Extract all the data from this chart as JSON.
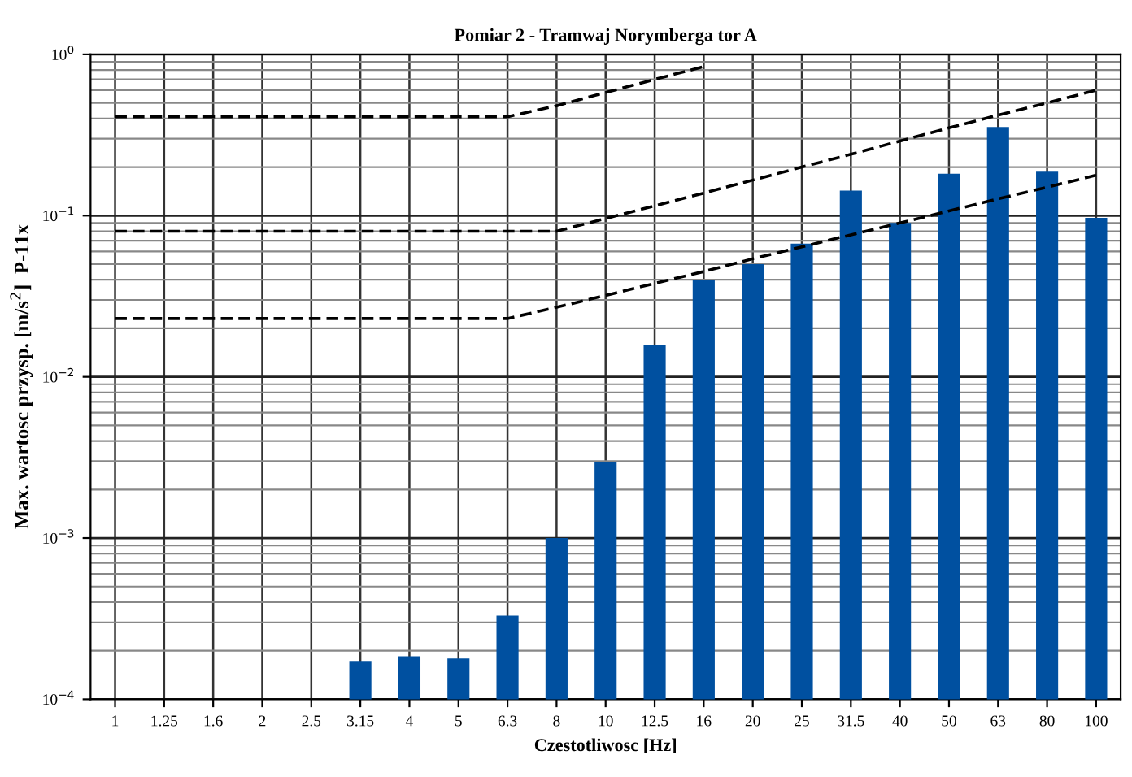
{
  "chart_data": {
    "type": "bar",
    "title": "Pomiar 2 - Tramwaj Norymberga tor A",
    "xlabel": "Czestotliwosc [Hz]",
    "ylabel": "Max. wartosc przysp. [m/s$^{2}$]  P-11x",
    "categories": [
      "1",
      "1.25",
      "1.6",
      "2",
      "2.5",
      "3.15",
      "4",
      "5",
      "6.3",
      "8",
      "10",
      "12.5",
      "16",
      "20",
      "25",
      "31.5",
      "40",
      "50",
      "63",
      "80",
      "100"
    ],
    "log": true,
    "ylim": [
      0.0001,
      1
    ],
    "yticks": [
      {
        "value": 0.0001,
        "label": "10$^{−4}$"
      },
      {
        "value": 0.001,
        "label": "10$^{−3}$"
      },
      {
        "value": 0.01,
        "label": "10$^{−2}$"
      },
      {
        "value": 0.1,
        "label": "10$^{−1}$"
      },
      {
        "value": 1,
        "label": "10$^{0}$"
      }
    ],
    "grid": true,
    "legend": false,
    "series": [
      {
        "color": "#0050a0",
        "values": [
          null,
          null,
          null,
          null,
          null,
          0.000173,
          0.000185,
          0.000179,
          0.00033,
          0.001,
          0.00296,
          0.0158,
          0.04,
          0.05,
          0.067,
          0.143,
          0.09,
          0.182,
          0.355,
          0.187,
          0.097
        ]
      },
      {
        "type": "line",
        "color": "#000000",
        "line_style": "dashed",
        "values": [
          0.41,
          0.41,
          0.41,
          0.41,
          0.41,
          0.41,
          0.41,
          0.41,
          0.41,
          0.48,
          0.58,
          0.7,
          0.84,
          null,
          null,
          null,
          null,
          null,
          null,
          null,
          null
        ]
      },
      {
        "type": "line",
        "color": "#000000",
        "line_style": "dashed",
        "values": [
          0.08,
          0.08,
          0.08,
          0.08,
          0.08,
          0.08,
          0.08,
          0.08,
          0.08,
          0.08,
          0.096,
          0.115,
          0.138,
          0.166,
          0.2,
          0.24,
          0.29,
          0.35,
          0.42,
          0.5,
          0.6
        ]
      },
      {
        "type": "line",
        "color": "#000000",
        "line_style": "dashed",
        "values": [
          0.023,
          0.023,
          0.023,
          0.023,
          0.023,
          0.023,
          0.023,
          0.023,
          0.023,
          0.027,
          0.032,
          0.038,
          0.045,
          0.054,
          0.064,
          0.076,
          0.09,
          0.107,
          0.127,
          0.15,
          0.178
        ]
      }
    ]
  }
}
